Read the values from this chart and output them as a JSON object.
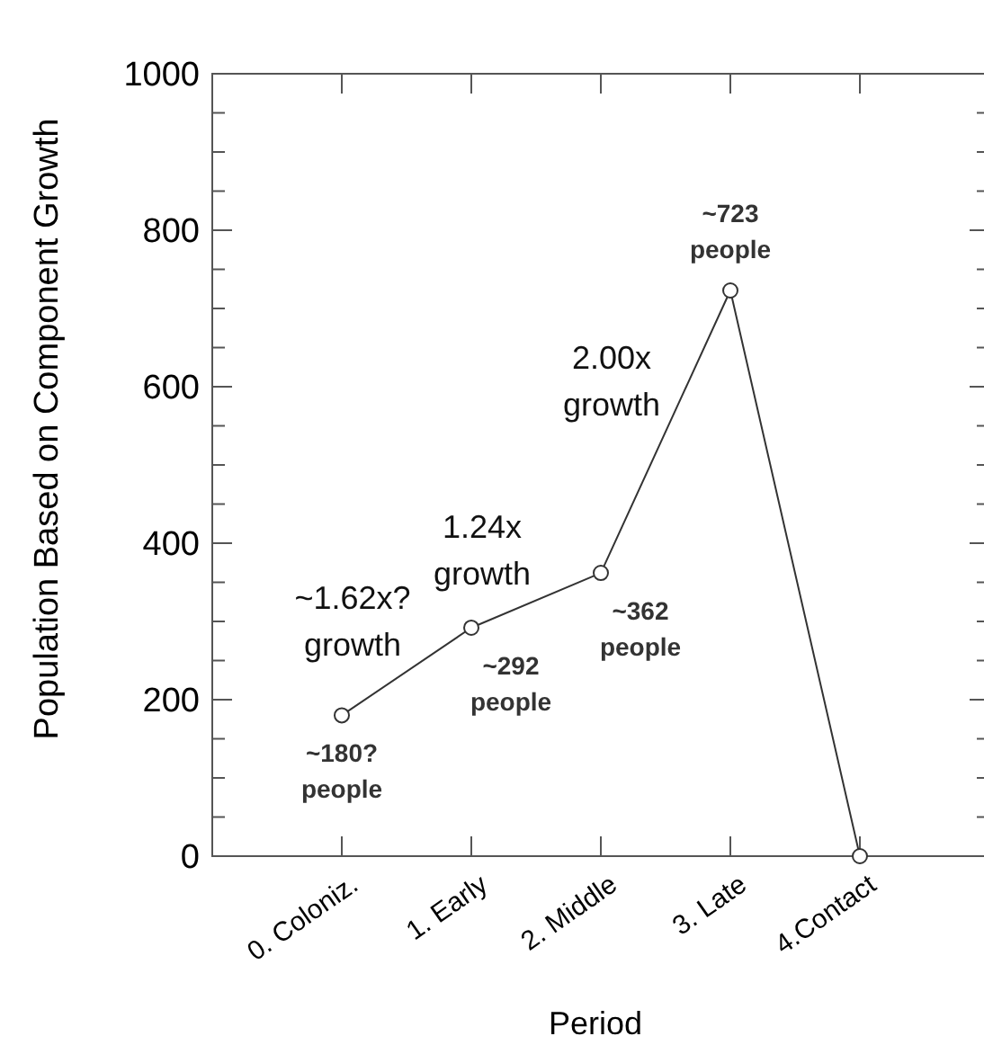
{
  "chart_data": {
    "type": "line",
    "xlabel": "Period",
    "ylabel": "Population Based on Component Growth",
    "categories": [
      "0. Coloniz.",
      "1. Early",
      "2. Middle",
      "3. Late",
      "4.Contact"
    ],
    "series": [
      {
        "color": "#333333",
        "values": [
          180,
          292,
          362,
          723,
          0
        ],
        "value_labels": [
          "~180?\npeople",
          "~292\npeople",
          "~362\npeople",
          "~723\npeople",
          null
        ]
      }
    ],
    "marker": "circle",
    "line_style": "solid",
    "ylim": [
      0,
      1000
    ],
    "yticks": [
      0,
      {
        "value": 50,
        "label": null
      },
      {
        "value": 100,
        "label": null
      },
      {
        "value": 150,
        "label": null
      },
      200,
      {
        "value": 250,
        "label": null
      },
      {
        "value": 300,
        "label": null
      },
      {
        "value": 350,
        "label": null
      },
      400,
      {
        "value": 450,
        "label": null
      },
      {
        "value": 500,
        "label": null
      },
      {
        "value": 550,
        "label": null
      },
      600,
      {
        "value": 650,
        "label": null
      },
      {
        "value": 700,
        "label": null
      },
      {
        "value": 750,
        "label": null
      },
      800,
      {
        "value": 850,
        "label": null
      },
      {
        "value": 900,
        "label": null
      },
      {
        "value": 950,
        "label": null
      },
      1000
    ],
    "annotations": [
      "~1.62x?\ngrowth",
      "1.24x\ngrowth",
      "2.00x\ngrowth"
    ]
  }
}
